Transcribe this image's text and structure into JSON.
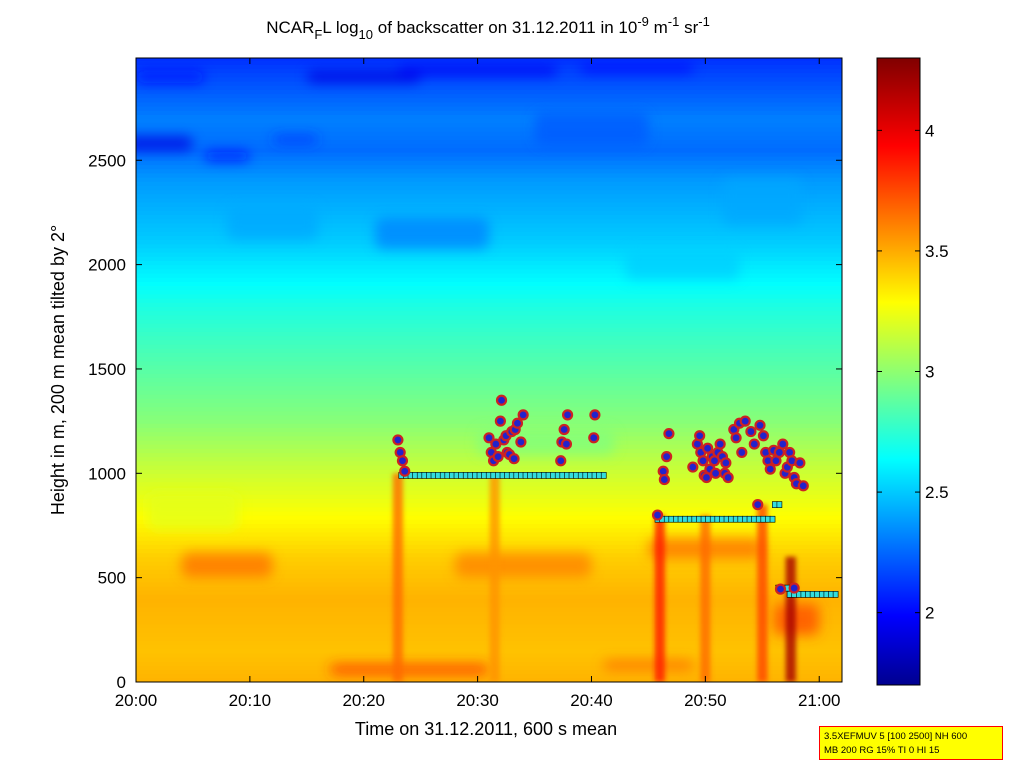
{
  "chart_data": {
    "type": "heatmap",
    "title": {
      "prefix": "NCAR",
      "prefix_sub": "F",
      "middle": "L log",
      "log_sub": "10",
      "main": " of backscatter on 31.12.2011 in 10",
      "exp1": "-9",
      "unit1": " m",
      "exp2": "-1",
      "unit2": " sr",
      "exp3": "-1"
    },
    "xlabel": "Time on 31.12.2011, 600 s mean",
    "ylabel": "Height in m, 200 m mean tilted by 2°",
    "x_domain_minutes": [
      0,
      62
    ],
    "x_ticks": [
      {
        "minute": 0,
        "label": "20:00"
      },
      {
        "minute": 10,
        "label": "20:10"
      },
      {
        "minute": 20,
        "label": "20:20"
      },
      {
        "minute": 30,
        "label": "20:30"
      },
      {
        "minute": 40,
        "label": "20:40"
      },
      {
        "minute": 50,
        "label": "20:50"
      },
      {
        "minute": 60,
        "label": "21:00"
      }
    ],
    "ylim": [
      0,
      2990
    ],
    "y_ticks": [
      0,
      500,
      1000,
      1500,
      2000,
      2500
    ],
    "colorbar": {
      "range": [
        1.7,
        4.3
      ],
      "ticks": [
        2,
        2.5,
        3,
        3.5,
        4
      ],
      "colormap": "jet"
    },
    "field_notes": [
      {
        "height_band": "0-600",
        "log_backscatter": 3.5
      },
      {
        "height_band": "600-1000",
        "log_backscatter": 3.3
      },
      {
        "height_band": "1500",
        "log_backscatter": 2.9
      },
      {
        "height_band": "2000-2400",
        "log_backscatter": 2.5
      },
      {
        "height_band": "2500-2990",
        "log_backscatter": 2.1
      }
    ],
    "plume_columns": [
      {
        "minute": 23,
        "top": 1000,
        "strength": 3.7
      },
      {
        "minute": 31.5,
        "top": 1000,
        "strength": 3.6
      },
      {
        "minute": 46,
        "top": 800,
        "strength": 3.9
      },
      {
        "minute": 50,
        "top": 800,
        "strength": 3.7
      },
      {
        "minute": 55,
        "top": 850,
        "strength": 3.8
      },
      {
        "minute": 57.5,
        "top": 600,
        "strength": 4.2
      }
    ],
    "markers": {
      "circle_fill": "#2222cc",
      "circle_ring": "#cc2222",
      "level_marker_fill": "#33dddd",
      "level_marker_edge": "#000000",
      "cloud_points": [
        [
          23.0,
          1160
        ],
        [
          23.2,
          1100
        ],
        [
          23.4,
          1060
        ],
        [
          23.6,
          1010
        ],
        [
          31.0,
          1170
        ],
        [
          31.2,
          1100
        ],
        [
          31.4,
          1060
        ],
        [
          31.6,
          1140
        ],
        [
          31.8,
          1080
        ],
        [
          32.0,
          1250
        ],
        [
          32.1,
          1350
        ],
        [
          32.3,
          1160
        ],
        [
          32.5,
          1180
        ],
        [
          32.6,
          1100
        ],
        [
          32.8,
          1090
        ],
        [
          33.0,
          1200
        ],
        [
          33.2,
          1070
        ],
        [
          33.3,
          1210
        ],
        [
          33.5,
          1240
        ],
        [
          33.8,
          1150
        ],
        [
          34.0,
          1280
        ],
        [
          37.3,
          1060
        ],
        [
          37.4,
          1150
        ],
        [
          37.6,
          1210
        ],
        [
          37.8,
          1140
        ],
        [
          37.9,
          1280
        ],
        [
          40.2,
          1170
        ],
        [
          40.3,
          1280
        ],
        [
          45.8,
          800
        ],
        [
          46.3,
          1010
        ],
        [
          46.4,
          970
        ],
        [
          46.6,
          1080
        ],
        [
          46.8,
          1190
        ],
        [
          48.9,
          1030
        ],
        [
          49.3,
          1140
        ],
        [
          49.5,
          1180
        ],
        [
          49.6,
          1100
        ],
        [
          49.8,
          1060
        ],
        [
          49.9,
          990
        ],
        [
          50.1,
          980
        ],
        [
          50.2,
          1120
        ],
        [
          50.4,
          1020
        ],
        [
          50.6,
          1080
        ],
        [
          50.8,
          1060
        ],
        [
          50.9,
          1000
        ],
        [
          51.1,
          1100
        ],
        [
          51.3,
          1140
        ],
        [
          51.5,
          1080
        ],
        [
          51.7,
          1000
        ],
        [
          51.8,
          1050
        ],
        [
          52.0,
          980
        ],
        [
          52.5,
          1210
        ],
        [
          52.7,
          1170
        ],
        [
          53.0,
          1240
        ],
        [
          53.2,
          1100
        ],
        [
          53.5,
          1250
        ],
        [
          54.0,
          1200
        ],
        [
          54.3,
          1140
        ],
        [
          54.6,
          850
        ],
        [
          54.8,
          1230
        ],
        [
          55.1,
          1180
        ],
        [
          55.3,
          1100
        ],
        [
          55.5,
          1060
        ],
        [
          55.7,
          1020
        ],
        [
          56.0,
          1110
        ],
        [
          56.2,
          1060
        ],
        [
          56.5,
          1100
        ],
        [
          56.8,
          1140
        ],
        [
          57.0,
          1000
        ],
        [
          57.2,
          1030
        ],
        [
          57.4,
          1100
        ],
        [
          57.6,
          1060
        ],
        [
          57.8,
          980
        ],
        [
          58.0,
          950
        ],
        [
          58.3,
          1050
        ],
        [
          58.6,
          940
        ],
        [
          56.6,
          445
        ],
        [
          57.8,
          450
        ]
      ],
      "level_segments": [
        {
          "start": 23.3,
          "end": 41.1,
          "height": 990
        },
        {
          "start": 45.8,
          "end": 55.9,
          "height": 780
        },
        {
          "start": 56.1,
          "end": 56.9,
          "height": 850
        },
        {
          "start": 56.4,
          "end": 57.8,
          "height": 450
        },
        {
          "start": 57.4,
          "end": 61.5,
          "height": 420
        }
      ]
    }
  },
  "info_box": {
    "line1": "3.5XEFMUV 5 [100 2500] NH 600",
    "line2": "MB 200 RG 15% TI 0 HI 15",
    "background": "#ffff00",
    "border": "#ff0000"
  }
}
